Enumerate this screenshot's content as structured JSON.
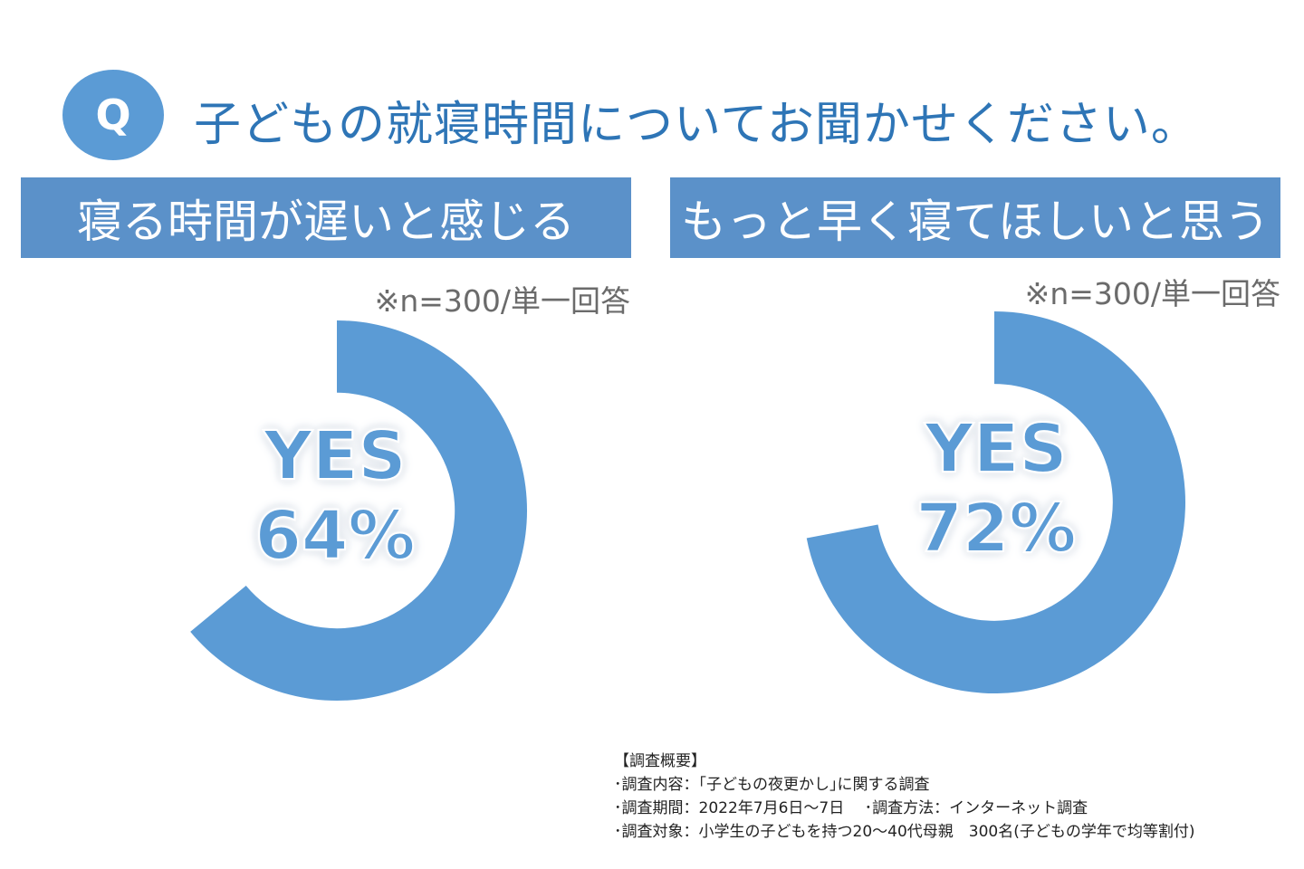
{
  "question": {
    "badge": "Q",
    "text": "子どもの就寝時間についてお聞かせください。"
  },
  "chart_data": [
    {
      "type": "pie",
      "title": "寝る時間が遅いと感じる",
      "note": "※n=300/単一回答",
      "categories": [
        "YES"
      ],
      "values": [
        64
      ],
      "label_top": "YES",
      "label_value": "64%",
      "color": "#5b9bd5"
    },
    {
      "type": "pie",
      "title": "もっと早く寝てほしいと思う",
      "note": "※n=300/単一回答",
      "categories": [
        "YES"
      ],
      "values": [
        72
      ],
      "label_top": "YES",
      "label_value": "72%",
      "color": "#5b9bd5"
    }
  ],
  "survey": {
    "heading": "【調査概要】",
    "lines": [
      "･調査内容：｢子どもの夜更かし｣に関する調査",
      "･調査期間：2022年7月6日～7日　 ･調査方法：インターネット調査",
      "･調査対象：小学生の子どもを持つ20～40代母親　300名(子どもの学年で均等割付)"
    ]
  }
}
